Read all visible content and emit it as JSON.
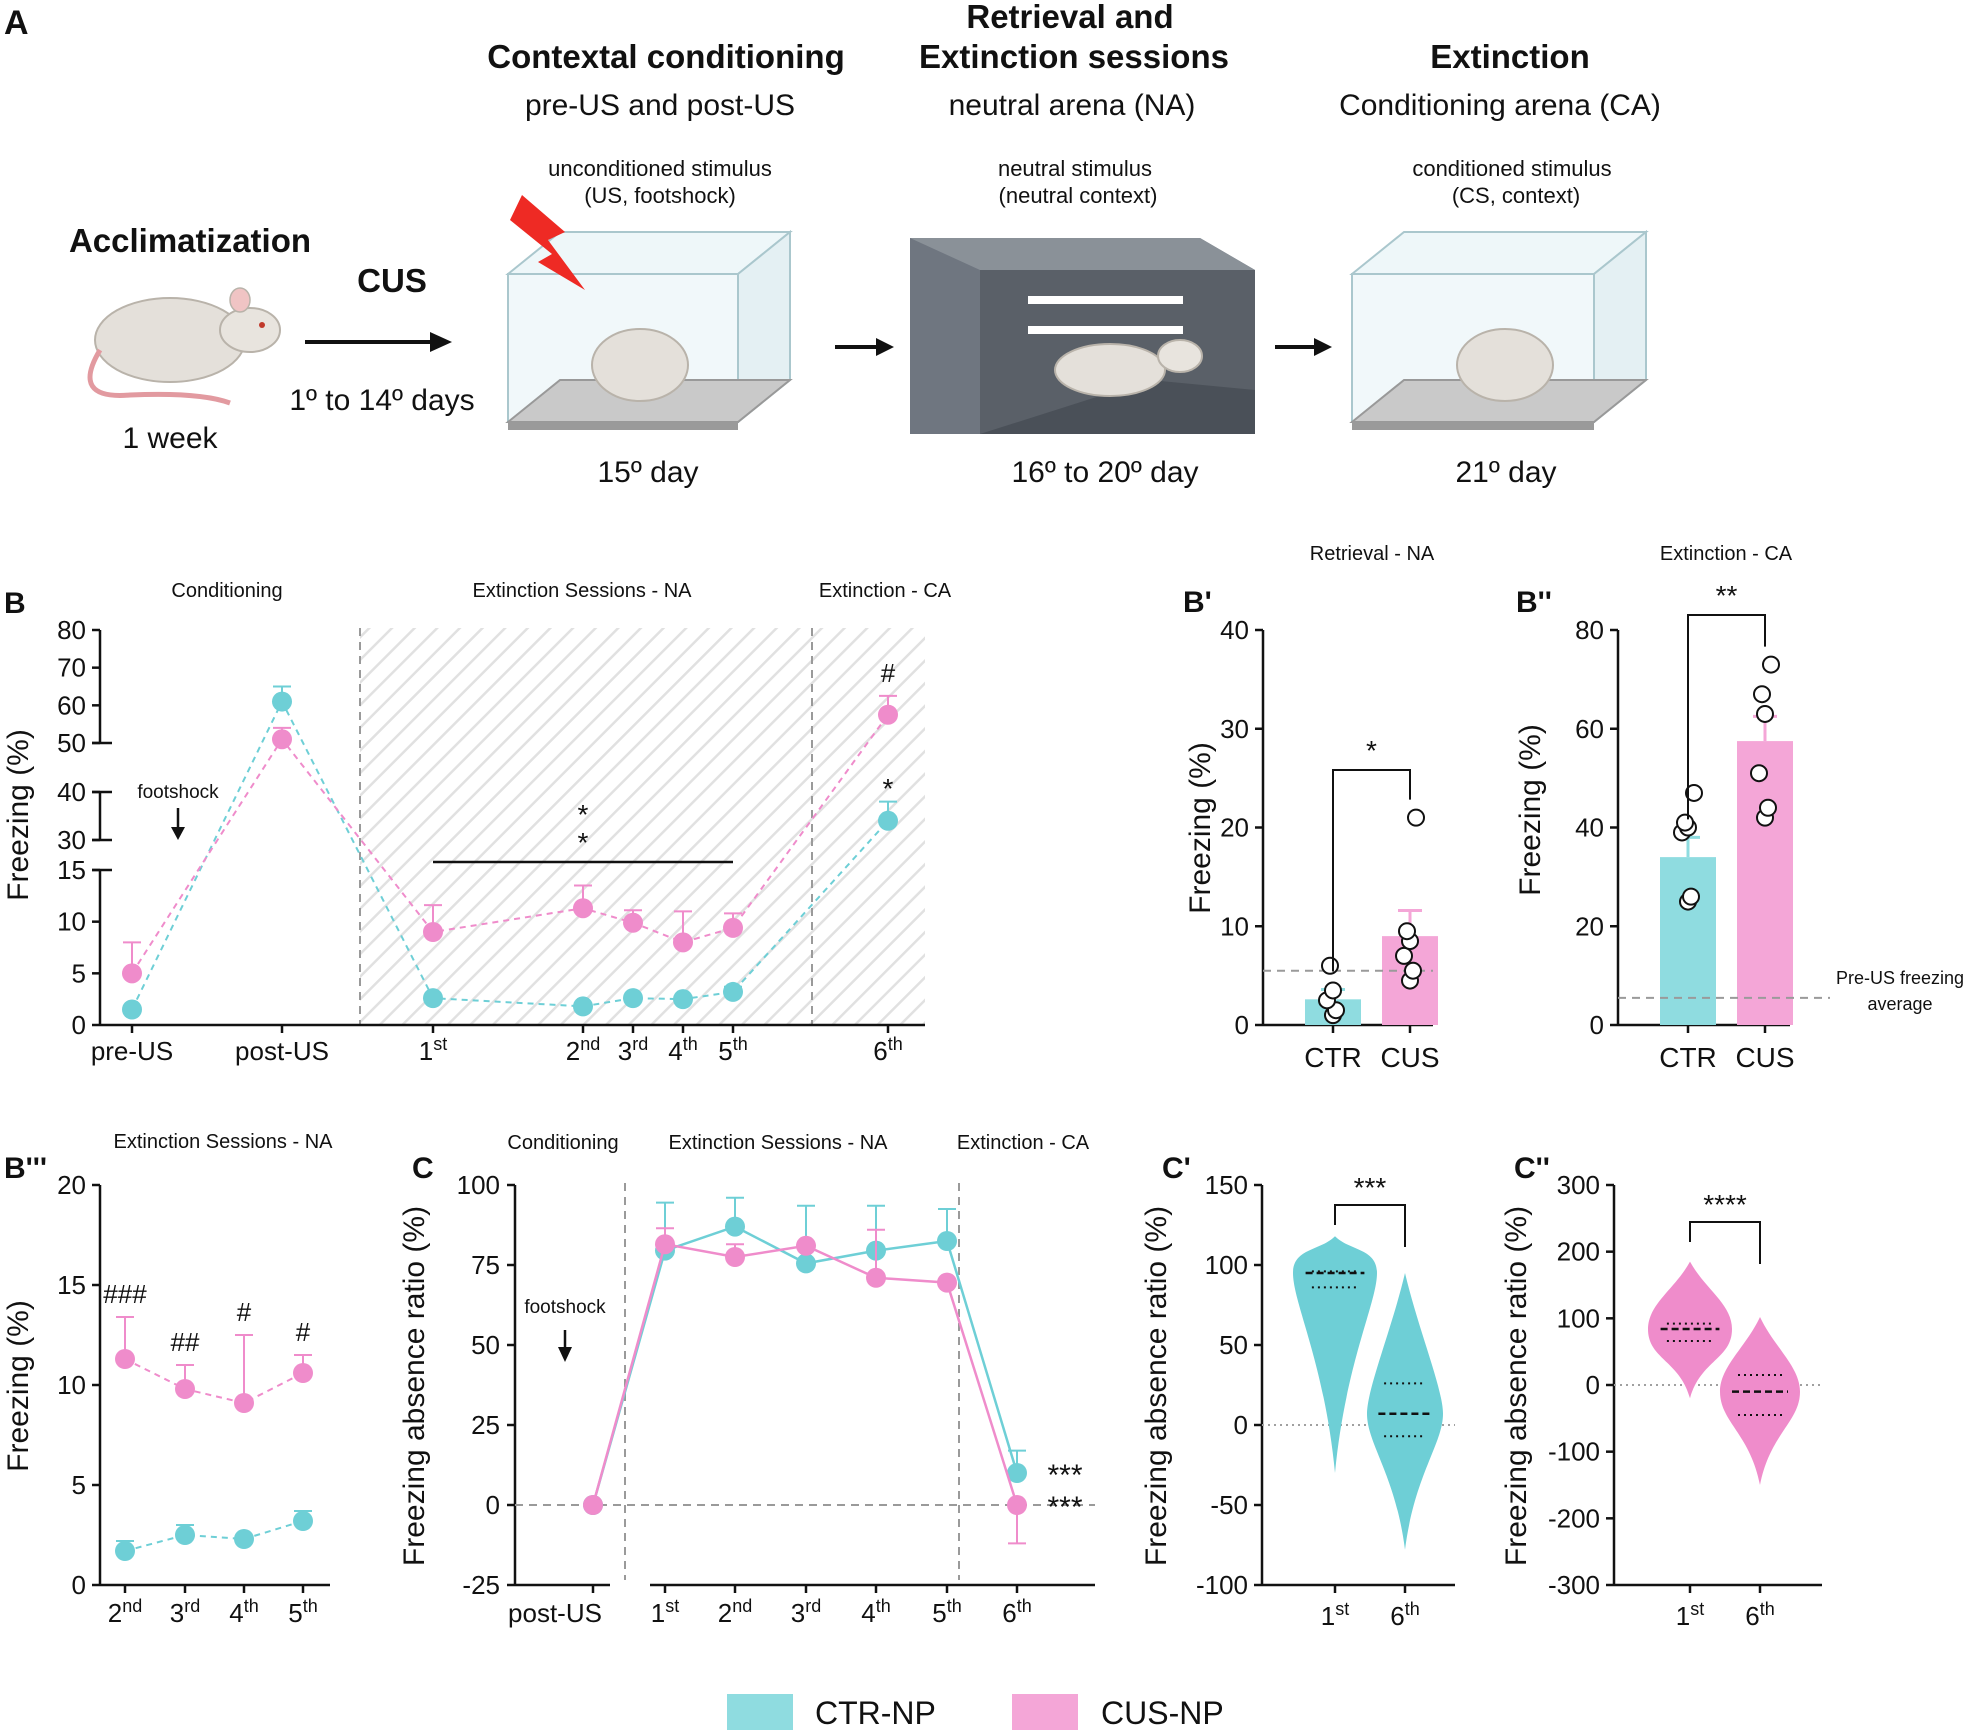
{
  "colors": {
    "ctr": "#8fdce0",
    "cus": "#f4a6d7",
    "ctr_dark": "#6ecfd6",
    "cus_dark": "#ef8ccb"
  },
  "panel_A": {
    "letter": "A",
    "stages": [
      {
        "title": "Acclimatization",
        "subtitle": "",
        "caption_top": "",
        "caption_top2": "",
        "bottom": "1 week",
        "icon": "rat-icon"
      },
      {
        "title": "CUS",
        "subtitle": "",
        "caption_top": "",
        "caption_top2": "",
        "bottom": "1º to 14º  days",
        "icon": "arrow-icon"
      },
      {
        "title": "Contextal conditioning",
        "subtitle": "pre-US and post-US",
        "caption_top": "unconditioned stimulus",
        "caption_top2": "(US, footshock)",
        "bottom": "15º day",
        "icon": "footshock-cage-icon"
      },
      {
        "title": "Retrieval and",
        "title2": "Extinction sessions",
        "subtitle": "neutral arena (NA)",
        "caption_top": "neutral stimulus",
        "caption_top2": "(neutral context)",
        "bottom": "16º to 20º day",
        "icon": "neutral-arena-icon"
      },
      {
        "title": "Extinction",
        "subtitle": "Conditioning arena (CA)",
        "caption_top": "conditioned stimulus",
        "caption_top2": "(CS, context)",
        "bottom": "21º day",
        "icon": "conditioning-cage-icon"
      }
    ]
  },
  "chart_data": [
    {
      "id": "B",
      "type": "line",
      "letter": "B",
      "titles": [
        "Conditioning",
        "Extinction Sessions - NA",
        "Extinction - CA"
      ],
      "ylabel": "Freezing (%)",
      "ylim_segments": [
        [
          0,
          15
        ],
        [
          30,
          40
        ],
        [
          50,
          80
        ]
      ],
      "yticks": [
        0,
        5,
        10,
        15,
        30,
        40,
        50,
        60,
        70,
        80
      ],
      "categories": [
        "pre-US",
        "post-US",
        "1st",
        "2nd",
        "3rd",
        "4th",
        "5th",
        "6th"
      ],
      "annotation": "footshock",
      "sig_marks": [
        "*",
        "*",
        "*",
        "#"
      ],
      "series": [
        {
          "name": "CTR-NP",
          "values": [
            1.5,
            61,
            2.6,
            1.8,
            2.6,
            2.5,
            3.2,
            34
          ],
          "errors": [
            0,
            4,
            0,
            0,
            0,
            0,
            0.5,
            4
          ]
        },
        {
          "name": "CUS-NP",
          "values": [
            5.0,
            51,
            9.0,
            11.3,
            9.9,
            8.0,
            9.4,
            57.5
          ],
          "errors": [
            3,
            3,
            2.6,
            2.2,
            1.2,
            3,
            1.4,
            5
          ]
        }
      ]
    },
    {
      "id": "B1",
      "type": "bar",
      "letter": "B'",
      "title": "Retrieval - NA",
      "ylabel": "Freezing (%)",
      "ylim": [
        0,
        40
      ],
      "yticks": [
        0,
        10,
        20,
        30,
        40
      ],
      "categories": [
        "CTR",
        "CUS"
      ],
      "values": [
        2.6,
        9.0
      ],
      "errors": [
        1.0,
        2.6
      ],
      "points": [
        [
          1,
          1.5,
          2.5,
          3.5,
          6
        ],
        [
          4.5,
          5.5,
          7,
          8.5,
          9.5,
          21
        ]
      ],
      "reference": 5.5,
      "sig": "*"
    },
    {
      "id": "B2",
      "type": "bar",
      "letter": "B''",
      "title": "Extinction - CA",
      "ylabel": "Freezing (%)",
      "ylim": [
        0,
        80
      ],
      "yticks": [
        0,
        20,
        40,
        60,
        80
      ],
      "categories": [
        "CTR",
        "CUS"
      ],
      "values": [
        34,
        57.5
      ],
      "errors": [
        4,
        5
      ],
      "points": [
        [
          25,
          26,
          39,
          40,
          41,
          47
        ],
        [
          42,
          44,
          51,
          63,
          67,
          73
        ]
      ],
      "reference": 5.5,
      "reference_label": [
        "Pre-US freezing",
        "average"
      ],
      "sig": "**"
    },
    {
      "id": "B3",
      "type": "line",
      "letter": "B'''",
      "title": "Extinction Sessions - NA",
      "ylabel": "Freezing (%)",
      "ylim": [
        0,
        20
      ],
      "yticks": [
        0,
        5,
        10,
        15,
        20
      ],
      "categories": [
        "2nd",
        "3rd",
        "4th",
        "5th"
      ],
      "sig_marks": [
        "###",
        "##",
        "#",
        "#"
      ],
      "series": [
        {
          "name": "CTR-NP",
          "values": [
            1.7,
            2.5,
            2.3,
            3.2
          ],
          "errors": [
            0.5,
            0.5,
            0,
            0.5
          ]
        },
        {
          "name": "CUS-NP",
          "values": [
            11.3,
            9.8,
            9.1,
            10.6
          ],
          "errors": [
            2.1,
            1.2,
            3.4,
            0.9
          ]
        }
      ]
    },
    {
      "id": "C",
      "type": "line",
      "letter": "C",
      "titles": [
        "Conditioning",
        "Extinction Sessions - NA",
        "Extinction - CA"
      ],
      "ylabel": "Freezing absence ratio (%)",
      "ylim": [
        -25,
        100
      ],
      "yticks": [
        -25,
        0,
        25,
        50,
        75,
        100
      ],
      "categories": [
        "post-US",
        "1st",
        "2nd",
        "3rd",
        "4th",
        "5th",
        "6th"
      ],
      "annotation": "footshock",
      "sig_marks": [
        "***",
        "***"
      ],
      "series": [
        {
          "name": "CTR-NP",
          "values": [
            0,
            79.5,
            87,
            75.5,
            79.5,
            82.5,
            10
          ],
          "errors": [
            0,
            15,
            9,
            18,
            14,
            10,
            7
          ]
        },
        {
          "name": "CUS-NP",
          "values": [
            0,
            81.5,
            77.5,
            81,
            71,
            69.5,
            0
          ],
          "errors": [
            0,
            5,
            4,
            0,
            15,
            0,
            12
          ]
        }
      ]
    },
    {
      "id": "C1",
      "type": "violin",
      "letter": "C'",
      "ylabel": "Freezing absence ratio (%)",
      "ylim": [
        -100,
        150
      ],
      "yticks": [
        -100,
        -50,
        0,
        50,
        100,
        150
      ],
      "categories": [
        "1st",
        "6th"
      ],
      "sig": "***",
      "medians": [
        95,
        7
      ],
      "quartiles": [
        [
          86,
          96
        ],
        [
          -7,
          26
        ]
      ],
      "ranges": [
        [
          -30,
          118
        ],
        [
          -78,
          95
        ]
      ]
    },
    {
      "id": "C2",
      "type": "violin",
      "letter": "C''",
      "ylabel": "Freezing absence ratio (%)",
      "ylim": [
        -300,
        300
      ],
      "yticks": [
        -300,
        -200,
        -100,
        0,
        100,
        200,
        300
      ],
      "categories": [
        "1st",
        "6th"
      ],
      "sig": "****",
      "medians": [
        84,
        -10
      ],
      "quartiles": [
        [
          66,
          92
        ],
        [
          -45,
          15
        ]
      ],
      "ranges": [
        [
          -20,
          185
        ],
        [
          -150,
          102
        ]
      ]
    }
  ],
  "legend": {
    "items": [
      "CTR-NP",
      "CUS-NP"
    ]
  }
}
